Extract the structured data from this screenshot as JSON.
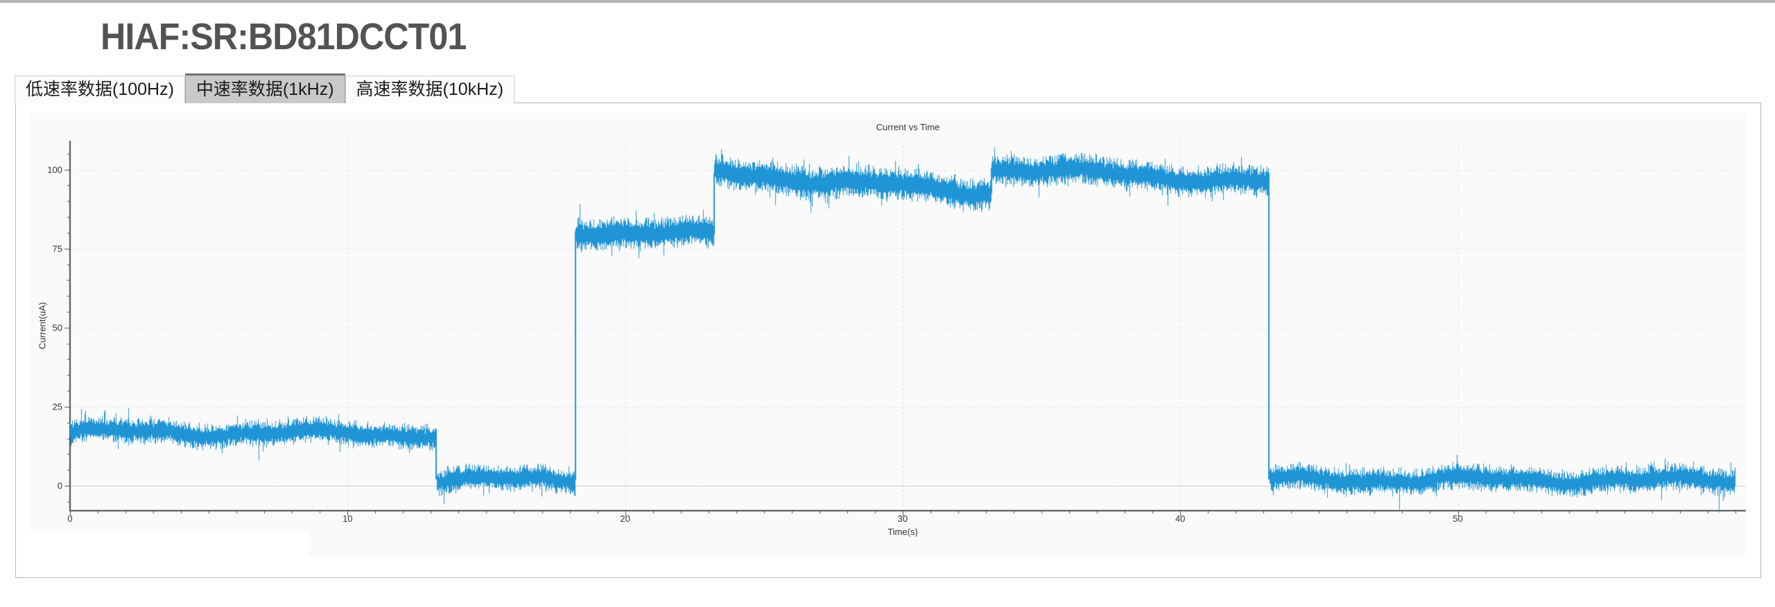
{
  "page": {
    "title": "HIAF:SR:BD81DCCT01"
  },
  "tabs": {
    "items": [
      {
        "label": "低速率数据(100Hz)",
        "active": false
      },
      {
        "label": "中速率数据(1kHz)",
        "active": true
      },
      {
        "label": "高速率数据(10kHz)",
        "active": false
      }
    ]
  },
  "chart_data": {
    "type": "line",
    "title": "Current vs Time",
    "xlabel": "Time(s)",
    "ylabel": "Current(uA)",
    "x_ticks": [
      0,
      10,
      20,
      30,
      40,
      50
    ],
    "y_ticks": [
      0,
      25,
      50,
      75,
      100
    ],
    "x_minor_step": 1,
    "y_minor_step": 5,
    "xlim": [
      0,
      60.5
    ],
    "ylim": [
      -8,
      109
    ],
    "grid": true,
    "legend": "none",
    "line_color": "#2095d5",
    "grid_color": "#dbdbdb",
    "zero_line_color": "#c9c9c9",
    "axis_color": "#4d4d4d",
    "plot_background": "#fafafa",
    "series_name": "Current",
    "segments": [
      {
        "t_start": 0.0,
        "t_end": 13.2,
        "level_start": 17.0,
        "level_end": 16.3,
        "noise": 4.2
      },
      {
        "t_start": 13.2,
        "t_end": 18.2,
        "level_start": 2.0,
        "level_end": 1.8,
        "noise": 4.3
      },
      {
        "t_start": 18.2,
        "t_end": 23.2,
        "level_start": 80.5,
        "level_end": 79.5,
        "noise": 5.3
      },
      {
        "t_start": 23.2,
        "t_end": 33.2,
        "level_start": 99.0,
        "level_end": 92.5,
        "noise": 5.3
      },
      {
        "t_start": 33.2,
        "t_end": 43.2,
        "level_start": 100.5,
        "level_end": 96.0,
        "noise": 5.0
      },
      {
        "t_start": 43.2,
        "t_end": 60.0,
        "level_start": 2.0,
        "level_end": 1.8,
        "noise": 4.3
      }
    ],
    "spikes": [
      {
        "t": 2.1,
        "v": 24.5
      },
      {
        "t": 6.8,
        "v": 8.0
      },
      {
        "t": 18.35,
        "v": 89.0
      },
      {
        "t": 23.45,
        "v": 106.5
      },
      {
        "t": 33.3,
        "v": 107.0
      },
      {
        "t": 47.9,
        "v": -7.5
      },
      {
        "t": 59.4,
        "v": -8.5
      }
    ]
  }
}
